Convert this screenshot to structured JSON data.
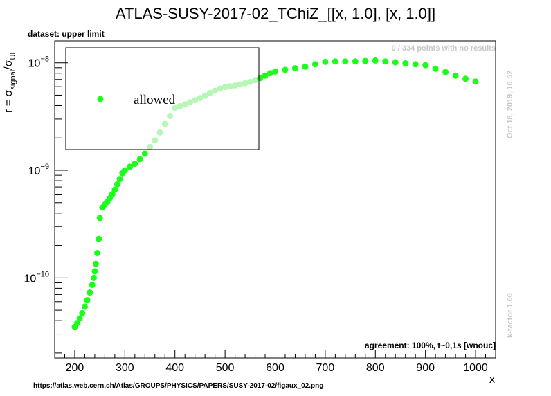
{
  "chart_data": {
    "type": "scatter",
    "title": "ATLAS-SUSY-2017-02_TChiZ_[[x, 1.0], [x, 1.0]]",
    "xlabel": "x",
    "ylabel": "r = σ_signal/σ_UL",
    "ylabel_parts": {
      "r": "r = σ",
      "sub1": "signal",
      "slash": "/σ",
      "sub2": "UL"
    },
    "dataset_label": "dataset: upper limit",
    "no_results_note": "0 / 334 points with no results",
    "timestamp": "Oct 18, 2019, 10:52",
    "kfactor": "k-factor 1.00",
    "agreement": "agreement: 100%, t~0,1s [wnouc]",
    "url": "https://atlas.web.cern.ch/Atlas/GROUPS/PHYSICS/PAPERS/SUSY-2017-02/figaux_02.png",
    "legend": {
      "label": "allowed",
      "placement": "top-left"
    },
    "xlim": [
      160,
      1040
    ],
    "ylim": [
      1.8e-11,
      1.6e-08
    ],
    "yscale": "log",
    "grid": false,
    "x_ticks": [
      "200",
      "300",
      "400",
      "500",
      "600",
      "700",
      "800",
      "900",
      "1000"
    ],
    "y_ticks": [
      {
        "base": "10",
        "exp": "−8",
        "value": 1e-08
      },
      {
        "base": "10",
        "exp": "−9",
        "value": 1e-09
      },
      {
        "base": "10",
        "exp": "−10",
        "value": 1e-10
      }
    ],
    "colors": {
      "allowed": "#1aff1a",
      "allowed_faded": "#b6f7b6",
      "meta_text": "#c8c8c8"
    },
    "series": [
      {
        "name": "allowed",
        "points": [
          [
            200,
            3.5e-11
          ],
          [
            205,
            3.8e-11
          ],
          [
            210,
            4.2e-11
          ],
          [
            215,
            4.7e-11
          ],
          [
            220,
            5.4e-11
          ],
          [
            225,
            6.2e-11
          ],
          [
            230,
            7.3e-11
          ],
          [
            235,
            8.6e-11
          ],
          [
            238,
            1e-10
          ],
          [
            240,
            1.15e-10
          ],
          [
            242,
            1.35e-10
          ],
          [
            245,
            1.7e-10
          ],
          [
            248,
            2.3e-10
          ],
          [
            250,
            3.6e-10
          ],
          [
            255,
            4.5e-10
          ],
          [
            260,
            4.8e-10
          ],
          [
            265,
            5.1e-10
          ],
          [
            270,
            5.5e-10
          ],
          [
            275,
            6e-10
          ],
          [
            280,
            6.6e-10
          ],
          [
            285,
            7.4e-10
          ],
          [
            290,
            8.3e-10
          ],
          [
            295,
            9.4e-10
          ],
          [
            300,
            1e-09
          ],
          [
            310,
            1.08e-09
          ],
          [
            320,
            1.15e-09
          ],
          [
            330,
            1.27e-09
          ],
          [
            340,
            1.43e-09
          ],
          [
            350,
            1.65e-09
          ],
          [
            360,
            1.9e-09
          ],
          [
            370,
            2.25e-09
          ],
          [
            380,
            2.7e-09
          ],
          [
            390,
            3.2e-09
          ],
          [
            400,
            3.8e-09
          ],
          [
            410,
            3.95e-09
          ],
          [
            420,
            4.1e-09
          ],
          [
            430,
            4.3e-09
          ],
          [
            440,
            4.5e-09
          ],
          [
            450,
            4.7e-09
          ],
          [
            460,
            4.95e-09
          ],
          [
            470,
            5.25e-09
          ],
          [
            480,
            5.5e-09
          ],
          [
            490,
            5.75e-09
          ],
          [
            500,
            5.95e-09
          ],
          [
            510,
            6.05e-09
          ],
          [
            520,
            6.15e-09
          ],
          [
            530,
            6.3e-09
          ],
          [
            540,
            6.45e-09
          ],
          [
            550,
            6.65e-09
          ],
          [
            560,
            6.9e-09
          ],
          [
            570,
            7.2e-09
          ],
          [
            580,
            7.6e-09
          ],
          [
            590,
            8e-09
          ],
          [
            600,
            8.3e-09
          ],
          [
            620,
            8.6e-09
          ],
          [
            640,
            8.9e-09
          ],
          [
            660,
            9.2e-09
          ],
          [
            680,
            9.7e-09
          ],
          [
            700,
            1.02e-08
          ],
          [
            720,
            1.03e-08
          ],
          [
            740,
            1.03e-08
          ],
          [
            760,
            1.03e-08
          ],
          [
            780,
            1.04e-08
          ],
          [
            800,
            1.05e-08
          ],
          [
            820,
            1.03e-08
          ],
          [
            840,
            1.01e-08
          ],
          [
            860,
            9.9e-09
          ],
          [
            880,
            9.7e-09
          ],
          [
            900,
            9.5e-09
          ],
          [
            920,
            8.8e-09
          ],
          [
            940,
            8.2e-09
          ],
          [
            960,
            7.6e-09
          ],
          [
            980,
            7.1e-09
          ],
          [
            1000,
            6.7e-09
          ]
        ]
      }
    ]
  }
}
